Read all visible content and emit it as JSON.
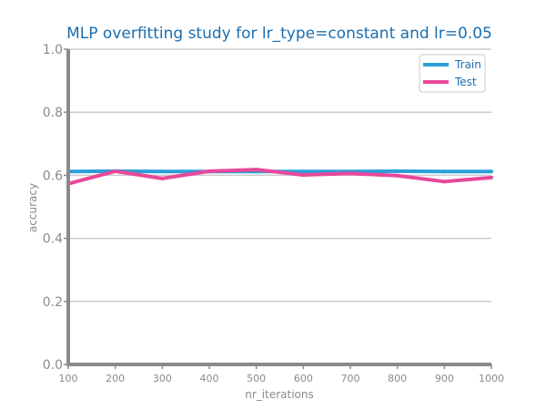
{
  "chart_data": {
    "type": "line",
    "title": "MLP overfitting study for lr_type=constant and lr=0.05",
    "xlabel": "nr_iterations",
    "ylabel": "accuracy",
    "x": [
      100,
      200,
      300,
      400,
      500,
      600,
      700,
      800,
      900,
      1000
    ],
    "xlim": [
      100,
      1000
    ],
    "ylim": [
      0.0,
      1.0
    ],
    "y_ticks": [
      "0.0",
      "0.2",
      "0.4",
      "0.6",
      "0.8",
      "1.0"
    ],
    "x_ticks": [
      "100",
      "200",
      "300",
      "400",
      "500",
      "600",
      "700",
      "800",
      "900",
      "1000"
    ],
    "grid": "horizontal",
    "legend_position": "top-right",
    "series": [
      {
        "name": "Train",
        "color": "#2a9fd8",
        "values": [
          0.612,
          0.613,
          0.612,
          0.612,
          0.612,
          0.612,
          0.612,
          0.613,
          0.612,
          0.612
        ]
      },
      {
        "name": "Test",
        "color": "#e8489a",
        "values": [
          0.573,
          0.613,
          0.59,
          0.613,
          0.618,
          0.601,
          0.606,
          0.599,
          0.58,
          0.593
        ]
      }
    ]
  }
}
